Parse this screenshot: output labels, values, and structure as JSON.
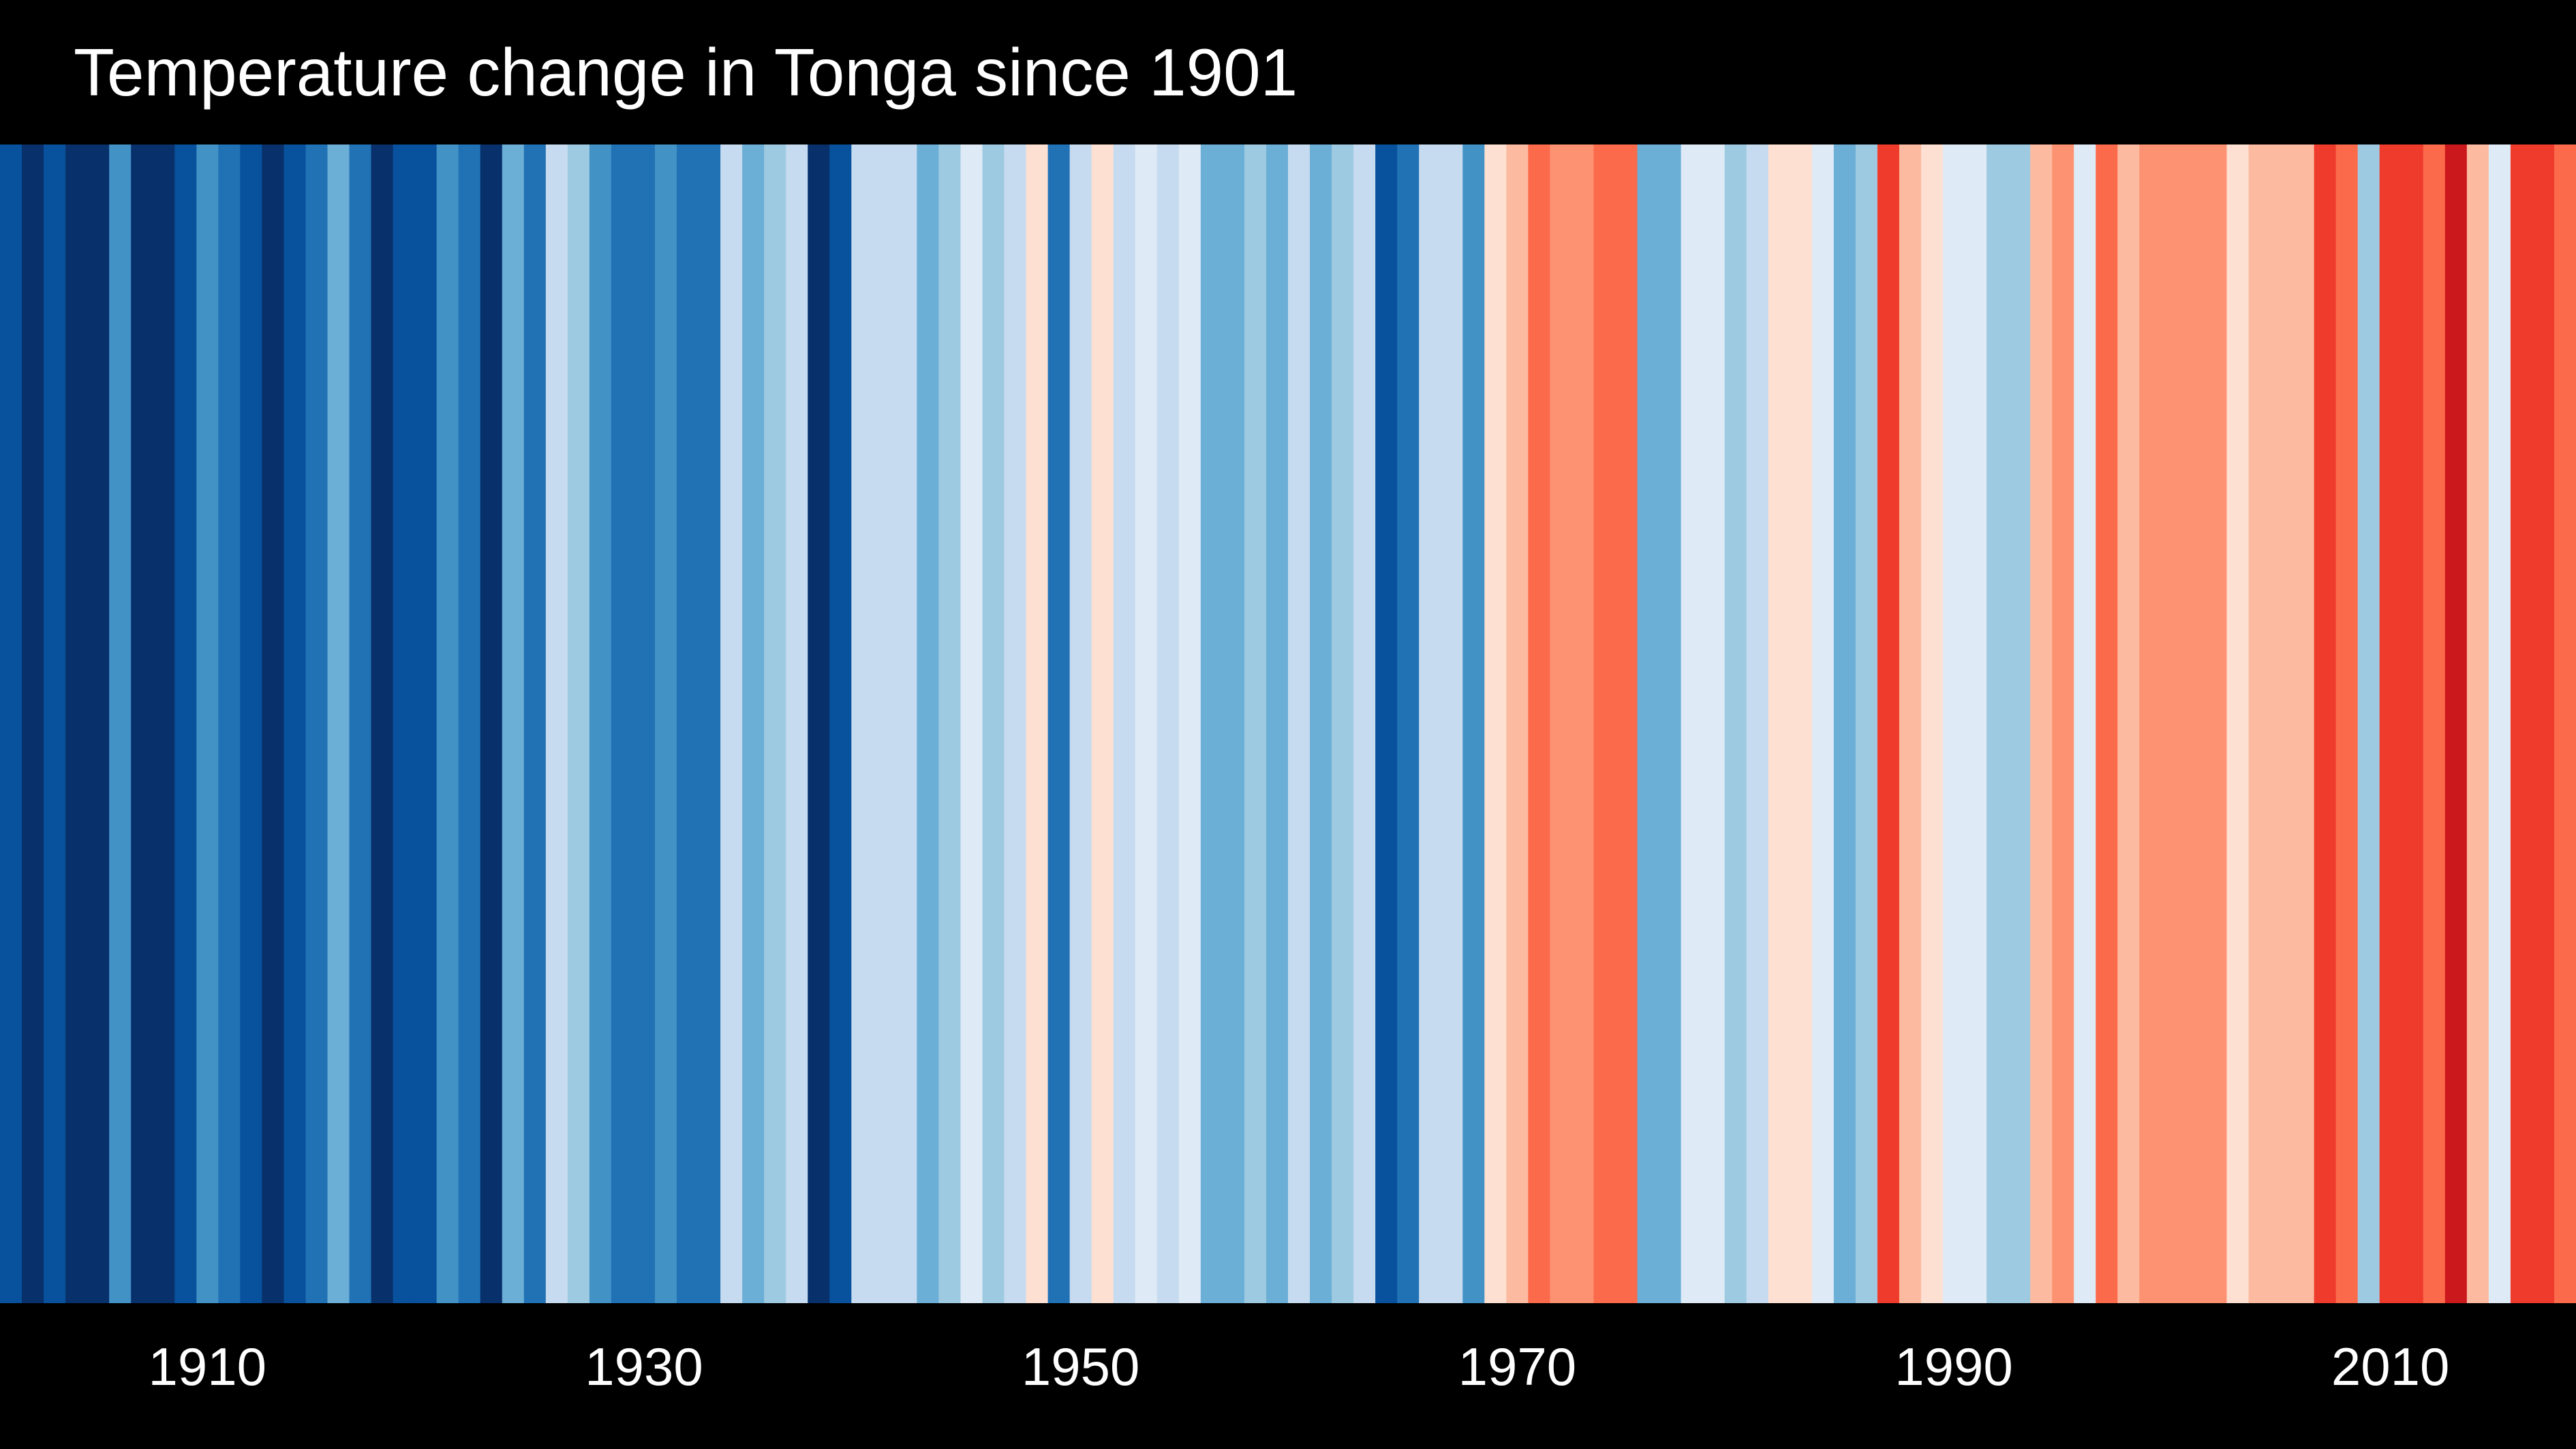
{
  "chart_data": {
    "type": "heatmap",
    "title": "Temperature change in Tonga since 1901",
    "x_start": 1901,
    "x_end": 2018,
    "xticks": [
      1910,
      1930,
      1950,
      1970,
      1990,
      2010
    ],
    "colors": {
      "background": "#000000",
      "text": "#ffffff"
    },
    "stripe_colors": [
      "#08519c",
      "#08306b",
      "#08519c",
      "#08306b",
      "#08306b",
      "#4292c6",
      "#08306b",
      "#08306b",
      "#08519c",
      "#4292c6",
      "#2171b5",
      "#08519c",
      "#08306b",
      "#08519c",
      "#2171b5",
      "#6baed6",
      "#2171b5",
      "#08306b",
      "#08519c",
      "#08519c",
      "#4292c6",
      "#2171b5",
      "#08306b",
      "#6baed6",
      "#2171b5",
      "#c6dbef",
      "#9ecae1",
      "#4292c6",
      "#2171b5",
      "#2171b5",
      "#4292c6",
      "#2171b5",
      "#2171b5",
      "#c6dbef",
      "#6baed6",
      "#9ecae1",
      "#c6dbef",
      "#08306b",
      "#08519c",
      "#c6dbef",
      "#c6dbef",
      "#c6dbef",
      "#6baed6",
      "#9ecae1",
      "#deebf7",
      "#9ecae1",
      "#c6dbef",
      "#fee0d2",
      "#2171b5",
      "#c6dbef",
      "#fee0d2",
      "#c6dbef",
      "#deebf7",
      "#c6dbef",
      "#deebf7",
      "#6baed6",
      "#6baed6",
      "#9ecae1",
      "#6baed6",
      "#c6dbef",
      "#6baed6",
      "#9ecae1",
      "#c6dbef",
      "#08519c",
      "#2171b5",
      "#c6dbef",
      "#c6dbef",
      "#4292c6",
      "#fee0d2",
      "#fcbba1",
      "#fb6a4a",
      "#fc9272",
      "#fc9272",
      "#fb6a4a",
      "#fb6a4a",
      "#6baed6",
      "#6baed6",
      "#deebf7",
      "#deebf7",
      "#9ecae1",
      "#c6dbef",
      "#fee0d2",
      "#fee0d2",
      "#deebf7",
      "#6baed6",
      "#9ecae1",
      "#ef3b2c",
      "#fcbba1",
      "#fee0d2",
      "#deebf7",
      "#deebf7",
      "#9ecae1",
      "#9ecae1",
      "#fcbba1",
      "#fc9272",
      "#deebf7",
      "#fb6a4a",
      "#fcbba1",
      "#fc9272",
      "#fc9272",
      "#fc9272",
      "#fc9272",
      "#fee0d2",
      "#fcbba1",
      "#fcbba1",
      "#fcbba1",
      "#ef3b2c",
      "#fb6a4a",
      "#9ecae1",
      "#ef3b2c",
      "#ef3b2c",
      "#fb6a4a",
      "#cb181d",
      "#fcbba1",
      "#deebf7",
      "#ef3b2c",
      "#ef3b2c",
      "#fb6a4a"
    ]
  }
}
